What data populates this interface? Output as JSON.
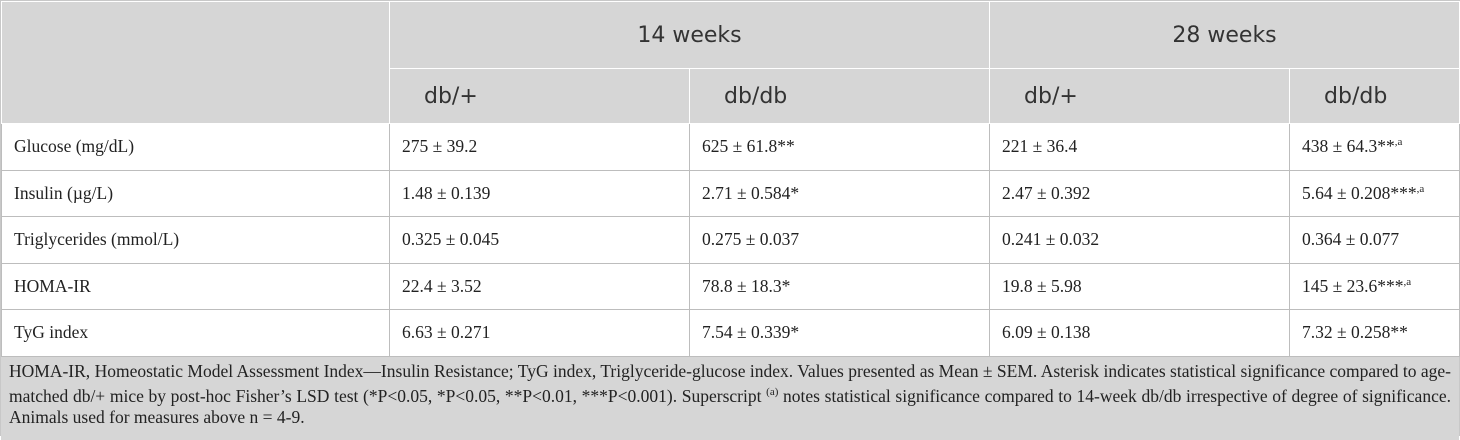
{
  "table": {
    "groups": [
      "14 weeks",
      "28 weeks"
    ],
    "subheaders": [
      "db/+",
      "db/db",
      "db/+",
      "db/db"
    ],
    "rows": [
      {
        "label": "Glucose (mg/dL)",
        "cells": [
          {
            "text": "275 ± 39.2"
          },
          {
            "text": "625 ± 61.8**"
          },
          {
            "text": "221 ± 36.4"
          },
          {
            "text": "438 ± 64.3**",
            "sup": ",a"
          }
        ]
      },
      {
        "label": "Insulin (µg/L)",
        "cells": [
          {
            "text": "1.48 ± 0.139"
          },
          {
            "text": "2.71 ± 0.584*"
          },
          {
            "text": "2.47 ± 0.392"
          },
          {
            "text": "5.64 ± 0.208***",
            "sup": ",a"
          }
        ]
      },
      {
        "label": "Triglycerides (mmol/L)",
        "cells": [
          {
            "text": "0.325 ± 0.045"
          },
          {
            "text": "0.275 ± 0.037"
          },
          {
            "text": "0.241 ± 0.032"
          },
          {
            "text": "0.364 ± 0.077"
          }
        ]
      },
      {
        "label": "HOMA-IR",
        "cells": [
          {
            "text": "22.4 ± 3.52"
          },
          {
            "text": "78.8 ± 18.3*"
          },
          {
            "text": "19.8 ± 5.98"
          },
          {
            "text": "145 ± 23.6***",
            "sup": ",a"
          }
        ]
      },
      {
        "label": "TyG index",
        "cells": [
          {
            "text": "6.63 ± 0.271"
          },
          {
            "text": "7.54 ± 0.339*"
          },
          {
            "text": "6.09 ± 0.138"
          },
          {
            "text": "7.32 ± 0.258**"
          }
        ]
      }
    ]
  },
  "footnote": {
    "before": "HOMA-IR, Homeostatic Model Assessment Index—Insulin Resistance; TyG index, Triglyceride-glucose index. Values presented as Mean ± SEM. Asterisk indicates statistical significance compared to age-matched db/+ mice by post-hoc Fisher’s LSD test (*P<0.05, *P<0.05, **P<0.01, ***P<0.001). Superscript ",
    "sup": "(a)",
    "after": " notes statistical significance compared to 14-week db/db irrespective of degree of significance. Animals used for measures above n = 4-9."
  }
}
